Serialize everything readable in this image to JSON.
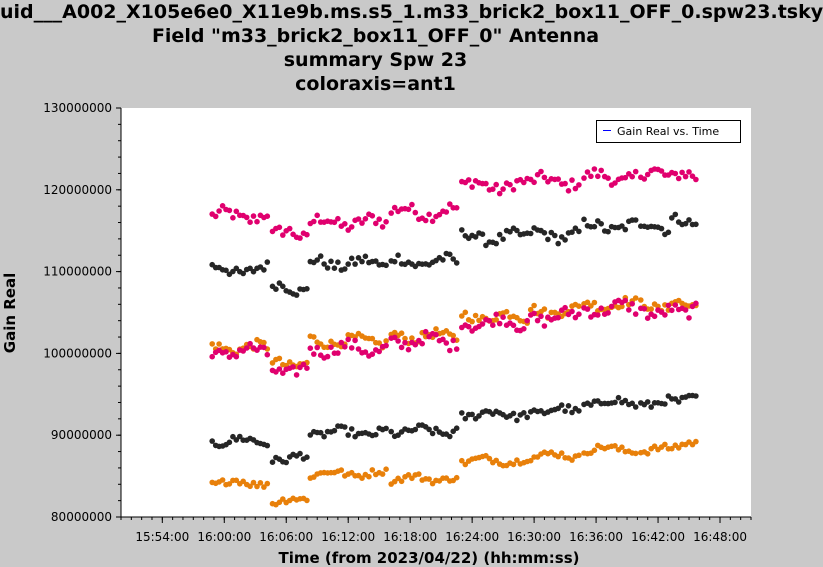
{
  "title_lines": [
    "uid___A002_X105e6e0_X11e9b.ms.s5_1.m33_brick2_box11_OFF_0.spw23.tsky",
    "Field \"m33_brick2_box11_OFF_0\" Antenna",
    "summary Spw 23",
    "coloraxis=ant1"
  ],
  "legend_label": "Gain Real vs. Time",
  "colors": {
    "plot_bg": "#ffffff",
    "page_bg": "#c9c9c9",
    "black": "#262626",
    "pink": "#e0006e",
    "orange": "#e8800a",
    "legend_line": "#0000ff"
  },
  "chart_data": {
    "type": "scatter",
    "xlabel": "Time (from 2023/04/22) (hh:mm:ss)",
    "ylabel": "Gain Real",
    "x_ticks": [
      "15:54:00",
      "16:00:00",
      "16:06:00",
      "16:12:00",
      "16:18:00",
      "16:24:00",
      "16:30:00",
      "16:36:00",
      "16:42:00",
      "16:48:00"
    ],
    "y_ticks": [
      "80000000",
      "90000000",
      "100000000",
      "110000000",
      "120000000",
      "130000000"
    ],
    "xlim": [
      "15:50:00",
      "16:51:00"
    ],
    "ylim": [
      80000000,
      130000000
    ],
    "grid": false,
    "legend_position": "top-right",
    "x_segments": [
      {
        "start": "15:58:50",
        "end": "16:04:20"
      },
      {
        "start": "16:04:40",
        "end": "16:08:00"
      },
      {
        "start": "16:08:20",
        "end": "16:15:50"
      },
      {
        "start": "16:16:10",
        "end": "16:22:40"
      },
      {
        "start": "16:23:00",
        "end": "16:29:20"
      },
      {
        "start": "16:29:40",
        "end": "16:34:30"
      },
      {
        "start": "16:34:50",
        "end": "16:40:00"
      },
      {
        "start": "16:40:20",
        "end": "16:43:00"
      },
      {
        "start": "16:43:20",
        "end": "16:45:50"
      }
    ],
    "series": [
      {
        "color": "pink",
        "levels": [
          116800000,
          114500000,
          116000000,
          117300000,
          120500000,
          121000000,
          121500000,
          121800000,
          121500000
        ],
        "noise": 900000
      },
      {
        "color": "black",
        "levels": [
          110200000,
          108000000,
          111000000,
          111200000,
          114200000,
          114500000,
          115500000,
          115500000,
          116000000
        ],
        "noise": 800000
      },
      {
        "color": "orange",
        "levels": [
          100700000,
          98800000,
          101500000,
          102100000,
          104500000,
          105200000,
          106000000,
          105800000,
          106200000
        ],
        "noise": 700000
      },
      {
        "color": "pink",
        "levels": [
          100200000,
          98000000,
          100600000,
          101500000,
          103800000,
          104500000,
          105500000,
          105200000,
          105500000
        ],
        "noise": 900000
      },
      {
        "color": "black",
        "levels": [
          89300000,
          87200000,
          90300000,
          90500000,
          92600000,
          93000000,
          94000000,
          94000000,
          94500000
        ],
        "noise": 600000
      },
      {
        "color": "orange",
        "levels": [
          84200000,
          82000000,
          85300000,
          84700000,
          86900000,
          87500000,
          88300000,
          88200000,
          88800000
        ],
        "noise": 500000
      }
    ]
  }
}
